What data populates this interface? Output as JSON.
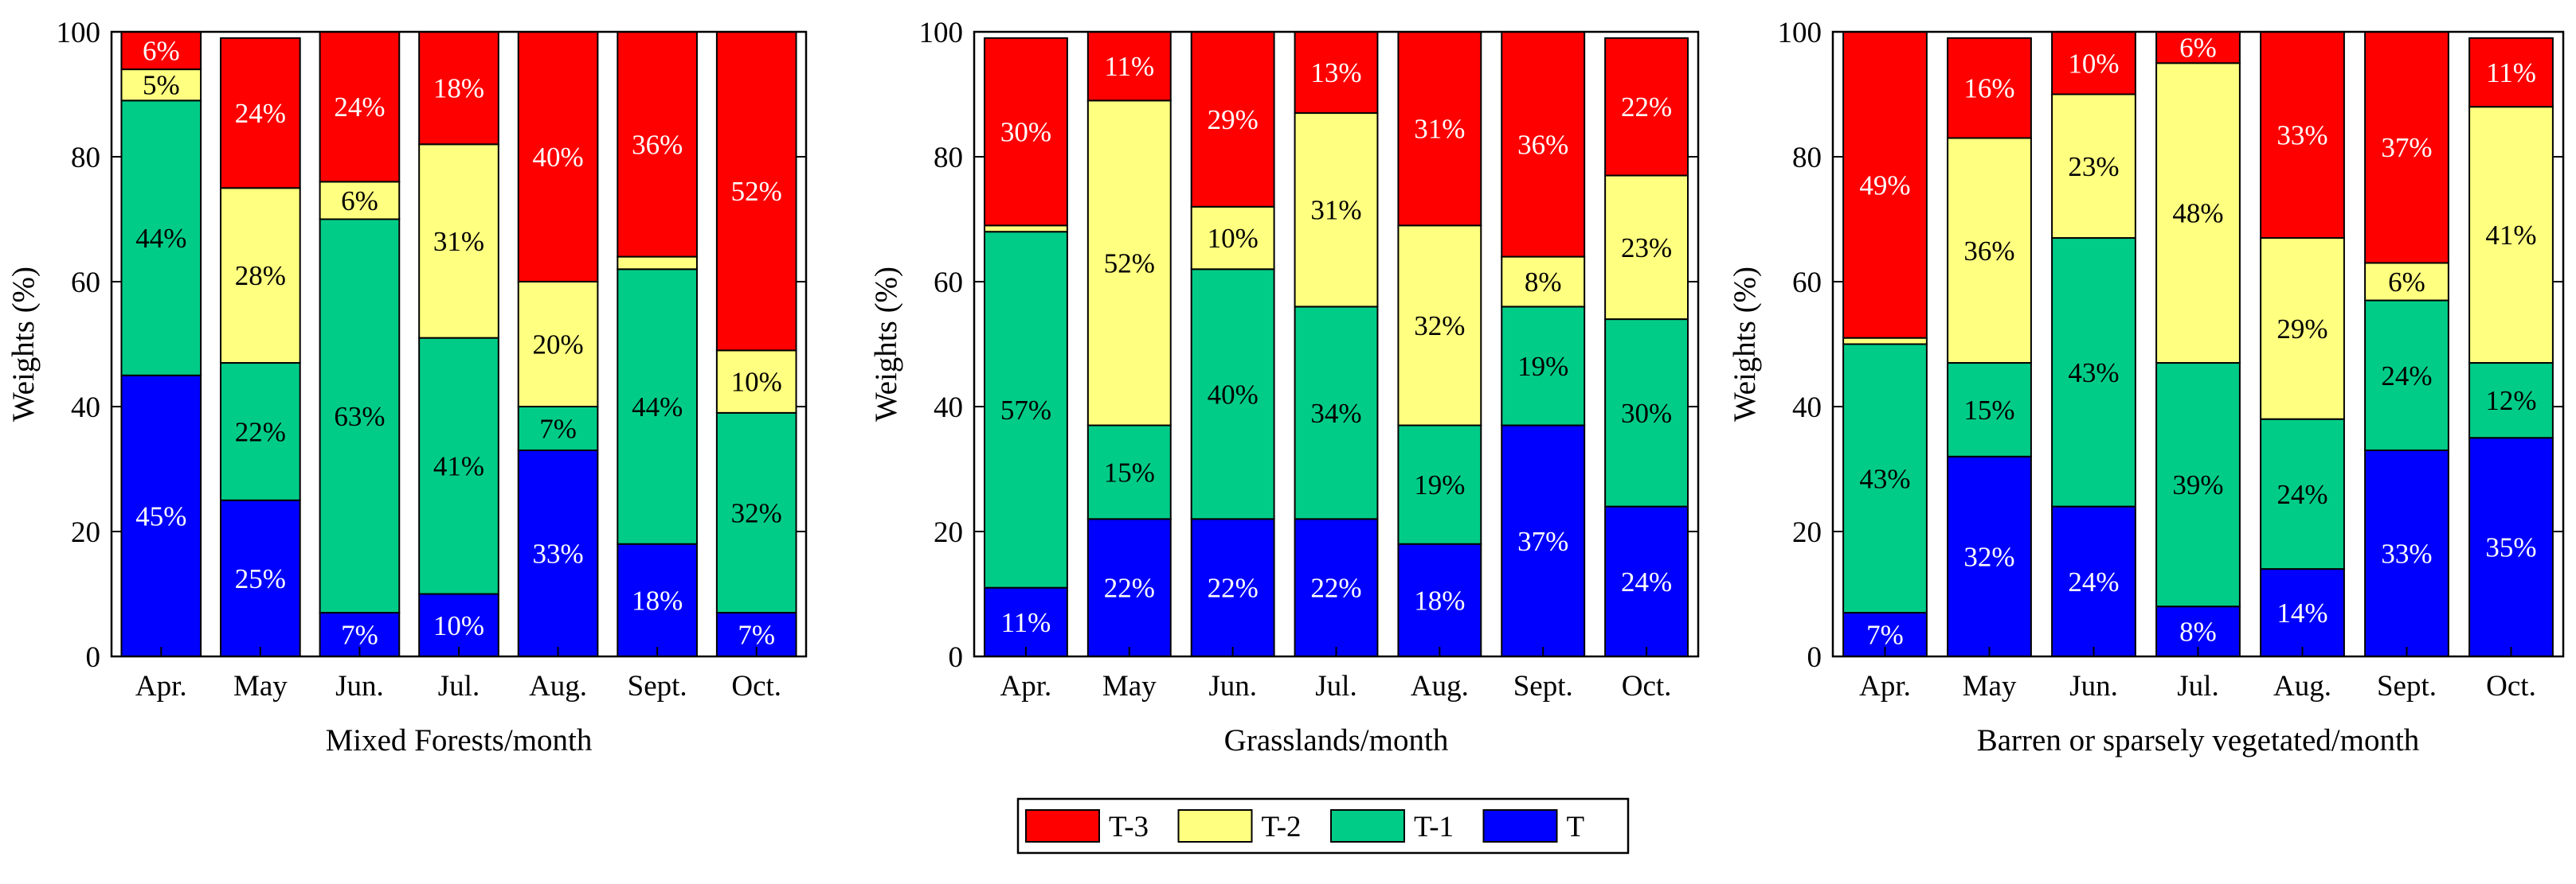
{
  "chart_data": {
    "type": "bar",
    "stacked": true,
    "ylim": [
      0,
      100
    ],
    "yticks": [
      0,
      20,
      40,
      60,
      80,
      100
    ],
    "ylabel": "Weights (%)",
    "months": [
      "Apr.",
      "May",
      "Jun.",
      "Jul.",
      "Aug.",
      "Sept.",
      "Oct."
    ],
    "stack_order": [
      "T",
      "T-1",
      "T-2",
      "T-3"
    ],
    "legend": {
      "placement": "bottom-center",
      "entries": [
        {
          "key": "T-3",
          "label": "T-3",
          "color": "#ff0000"
        },
        {
          "key": "T-2",
          "label": "T-2",
          "color": "#ffff80"
        },
        {
          "key": "T-1",
          "label": "T-1",
          "color": "#00cc88"
        },
        {
          "key": "T",
          "label": "T",
          "color": "#0000ff"
        }
      ]
    },
    "label_colors": {
      "T": "#ffffff",
      "T-1": "#000000",
      "T-2": "#000000",
      "T-3": "#ffffff"
    },
    "panels": [
      {
        "xlabel": "Mixed Forests/month",
        "series": {
          "T": [
            45,
            25,
            7,
            10,
            33,
            18,
            7
          ],
          "T-1": [
            44,
            22,
            63,
            41,
            7,
            44,
            32
          ],
          "T-2": [
            5,
            28,
            6,
            31,
            20,
            2,
            10
          ],
          "T-3": [
            6,
            24,
            24,
            18,
            40,
            36,
            52
          ]
        },
        "labels": {
          "T": [
            "45%",
            "25%",
            "7%",
            "10%",
            "33%",
            "18%",
            "7%"
          ],
          "T-1": [
            "44%",
            "22%",
            "63%",
            "41%",
            "7%",
            "44%",
            "32%"
          ],
          "T-2": [
            "5%",
            "28%",
            "6%",
            "31%",
            "20%",
            "",
            "10%"
          ],
          "T-3": [
            "6%",
            "24%",
            "24%",
            "18%",
            "40%",
            "36%",
            "52%"
          ]
        }
      },
      {
        "xlabel": "Grasslands/month",
        "series": {
          "T": [
            11,
            22,
            22,
            22,
            18,
            37,
            24
          ],
          "T-1": [
            57,
            15,
            40,
            34,
            19,
            19,
            30
          ],
          "T-2": [
            1,
            52,
            10,
            31,
            32,
            8,
            23
          ],
          "T-3": [
            30,
            11,
            29,
            13,
            31,
            36,
            22
          ]
        },
        "labels": {
          "T": [
            "11%",
            "22%",
            "22%",
            "22%",
            "18%",
            "37%",
            "24%"
          ],
          "T-1": [
            "57%",
            "15%",
            "40%",
            "34%",
            "19%",
            "19%",
            "30%"
          ],
          "T-2": [
            "",
            "52%",
            "10%",
            "31%",
            "32%",
            "8%",
            "23%"
          ],
          "T-3": [
            "30%",
            "11%",
            "29%",
            "13%",
            "31%",
            "36%",
            "22%"
          ]
        }
      },
      {
        "xlabel": "Barren or sparsely vegetated/month",
        "series": {
          "T": [
            7,
            32,
            24,
            8,
            14,
            33,
            35
          ],
          "T-1": [
            43,
            15,
            43,
            39,
            24,
            24,
            12
          ],
          "T-2": [
            1,
            36,
            23,
            48,
            29,
            6,
            41
          ],
          "T-3": [
            49,
            16,
            10,
            6,
            33,
            37,
            11
          ]
        },
        "labels": {
          "T": [
            "7%",
            "32%",
            "24%",
            "8%",
            "14%",
            "33%",
            "35%"
          ],
          "T-1": [
            "43%",
            "15%",
            "43%",
            "39%",
            "24%",
            "24%",
            "12%"
          ],
          "T-2": [
            "",
            "36%",
            "23%",
            "48%",
            "29%",
            "6%",
            "41%"
          ],
          "T-3": [
            "49%",
            "16%",
            "10%",
            "6%",
            "33%",
            "37%",
            "11%"
          ]
        }
      }
    ]
  }
}
